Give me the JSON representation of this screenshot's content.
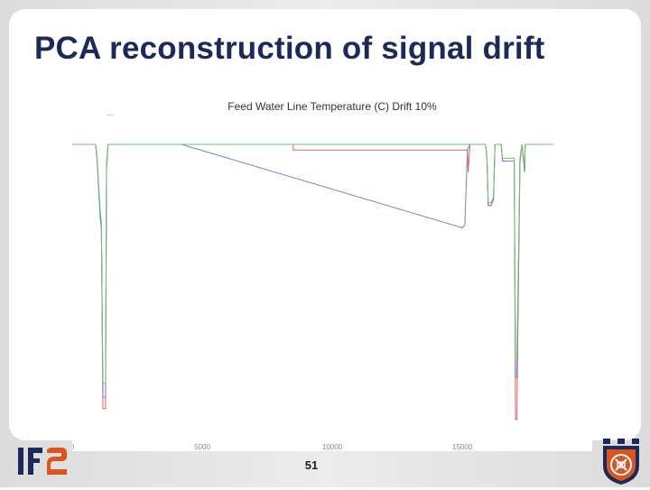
{
  "slide": {
    "title": "PCA reconstruction of signal drift",
    "page_number": "51"
  },
  "colors": {
    "title": "#1c2a5a",
    "original_signal": "#e06060",
    "drifted_signal": "#7080d0",
    "pca_reconstruction": "#70c070",
    "logo_primary": "#1c2a5a",
    "logo_accent": "#d9541e"
  },
  "logos": {
    "left": "ife-logo",
    "right": "seal-logo"
  },
  "chart_data": {
    "type": "line",
    "title": "Feed Water Line Temperature (C)   Drift 10%",
    "legend_stub": "---",
    "xlim": [
      0,
      20000
    ],
    "ylim": [
      0,
      100
    ],
    "x_ticks": [
      0,
      5000,
      10000,
      15000
    ],
    "x_tick_labels": [
      "0",
      "5000",
      "10000",
      "15000"
    ],
    "series": [
      {
        "color_key": "original_signal",
        "x": [
          0,
          900,
          950,
          1080,
          1120,
          1180,
          1280,
          1320,
          1380,
          8500,
          8500,
          15200,
          15230,
          15300,
          15900,
          15950,
          16000,
          16100,
          16200,
          16260,
          16500,
          16550,
          17000,
          17050,
          17100,
          17200,
          17220,
          17300,
          17350,
          17400,
          17420,
          18500
        ],
        "y": [
          100,
          100,
          95,
          75,
          70,
          5,
          5,
          90,
          100,
          100,
          98,
          98,
          90,
          100,
          100,
          95,
          78,
          78,
          80,
          100,
          100,
          94,
          94,
          1,
          1,
          78,
          93,
          100,
          95,
          90,
          100,
          100
        ]
      },
      {
        "color_key": "drifted_signal",
        "x": [
          0,
          900,
          950,
          1080,
          1120,
          1180,
          1280,
          1320,
          1380,
          4200,
          15000,
          15100,
          15200,
          15300,
          15900,
          15950,
          16000,
          16100,
          16200,
          16260,
          16500,
          16550,
          17000,
          17050,
          17100,
          17200,
          17220,
          17300,
          17350,
          17400,
          17420,
          18500
        ],
        "y": [
          100,
          100,
          95,
          73,
          70,
          9,
          9,
          93,
          100,
          100,
          70,
          71,
          98,
          100,
          100,
          95,
          78,
          78,
          80,
          100,
          100,
          94,
          94,
          16,
          16,
          80,
          94,
          100,
          95,
          90,
          100,
          100
        ]
      },
      {
        "color_key": "pca_reconstruction",
        "x": [
          0,
          900,
          950,
          1080,
          1120,
          1180,
          1280,
          1320,
          1380,
          15000,
          15200,
          15300,
          15900,
          15950,
          16000,
          16100,
          16200,
          16260,
          16500,
          16550,
          17000,
          17050,
          17100,
          17200,
          17220,
          17300,
          17350,
          17400,
          17420,
          18500
        ],
        "y": [
          100,
          100,
          96,
          76,
          72,
          14,
          14,
          92,
          100,
          100,
          100,
          100,
          100,
          95,
          79,
          79,
          81,
          100,
          100,
          95,
          95,
          22,
          22,
          82,
          95,
          100,
          96,
          91,
          100,
          100
        ]
      }
    ]
  }
}
